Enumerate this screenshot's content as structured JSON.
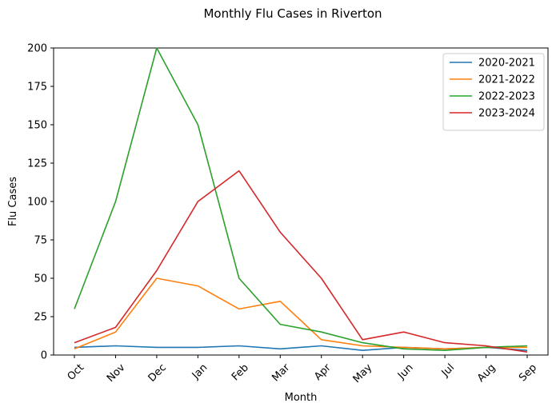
{
  "chart_data": {
    "type": "line",
    "title": "Monthly Flu Cases in Riverton",
    "xlabel": "Month",
    "ylabel": "Flu Cases",
    "categories": [
      "Oct",
      "Nov",
      "Dec",
      "Jan",
      "Feb",
      "Mar",
      "Apr",
      "May",
      "Jun",
      "Jul",
      "Aug",
      "Sep"
    ],
    "ylim": [
      0,
      200
    ],
    "yticks": [
      0,
      25,
      50,
      75,
      100,
      125,
      150,
      175,
      200
    ],
    "grid": false,
    "legend_position": "top-right",
    "series": [
      {
        "name": "2020-2021",
        "color": "#1f77b4",
        "values": [
          5,
          6,
          5,
          5,
          6,
          4,
          6,
          3,
          5,
          4,
          5,
          3
        ]
      },
      {
        "name": "2021-2022",
        "color": "#ff7f0e",
        "values": [
          4,
          15,
          50,
          45,
          30,
          35,
          10,
          6,
          5,
          4,
          5,
          5
        ]
      },
      {
        "name": "2022-2023",
        "color": "#2ca02c",
        "values": [
          30,
          100,
          200,
          150,
          50,
          20,
          15,
          8,
          4,
          3,
          5,
          6
        ]
      },
      {
        "name": "2023-2024",
        "color": "#d62728",
        "values": [
          8,
          18,
          55,
          100,
          120,
          80,
          50,
          10,
          15,
          8,
          6,
          2
        ]
      }
    ]
  }
}
